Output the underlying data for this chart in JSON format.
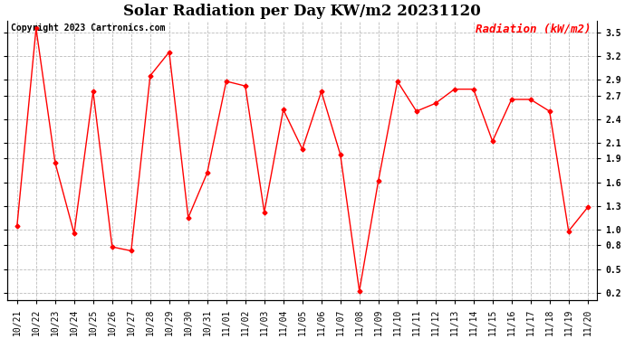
{
  "title": "Solar Radiation per Day KW/m2 20231120",
  "copyright": "Copyright 2023 Cartronics.com",
  "legend_label": "Radiation (kW/m2)",
  "dates": [
    "10/21",
    "10/22",
    "10/23",
    "10/24",
    "10/25",
    "10/26",
    "10/27",
    "10/28",
    "10/29",
    "10/30",
    "10/31",
    "11/01",
    "11/02",
    "11/03",
    "11/04",
    "11/05",
    "11/06",
    "11/07",
    "11/08",
    "11/09",
    "11/10",
    "11/11",
    "11/12",
    "11/13",
    "11/14",
    "11/15",
    "11/16",
    "11/17",
    "11/18",
    "11/19",
    "11/20"
  ],
  "values": [
    1.05,
    3.55,
    1.85,
    0.95,
    2.75,
    0.78,
    0.73,
    2.95,
    3.25,
    1.15,
    1.72,
    2.88,
    2.82,
    1.22,
    2.52,
    2.02,
    2.75,
    1.95,
    0.22,
    1.62,
    2.88,
    2.5,
    2.6,
    2.78,
    2.78,
    2.12,
    2.65,
    2.65,
    2.5,
    0.98,
    1.28
  ],
  "line_color": "#FF0000",
  "marker": "D",
  "marker_size": 2.5,
  "line_width": 1.0,
  "ylim": [
    0.1,
    3.65
  ],
  "yticks": [
    0.2,
    0.5,
    0.8,
    1.0,
    1.3,
    1.6,
    1.9,
    2.1,
    2.4,
    2.7,
    2.9,
    3.2,
    3.5
  ],
  "title_fontsize": 12,
  "copyright_fontsize": 7,
  "legend_fontsize": 9,
  "tick_fontsize": 7,
  "background_color": "#ffffff",
  "grid_color": "#bbbbbb",
  "grid_style": "--"
}
